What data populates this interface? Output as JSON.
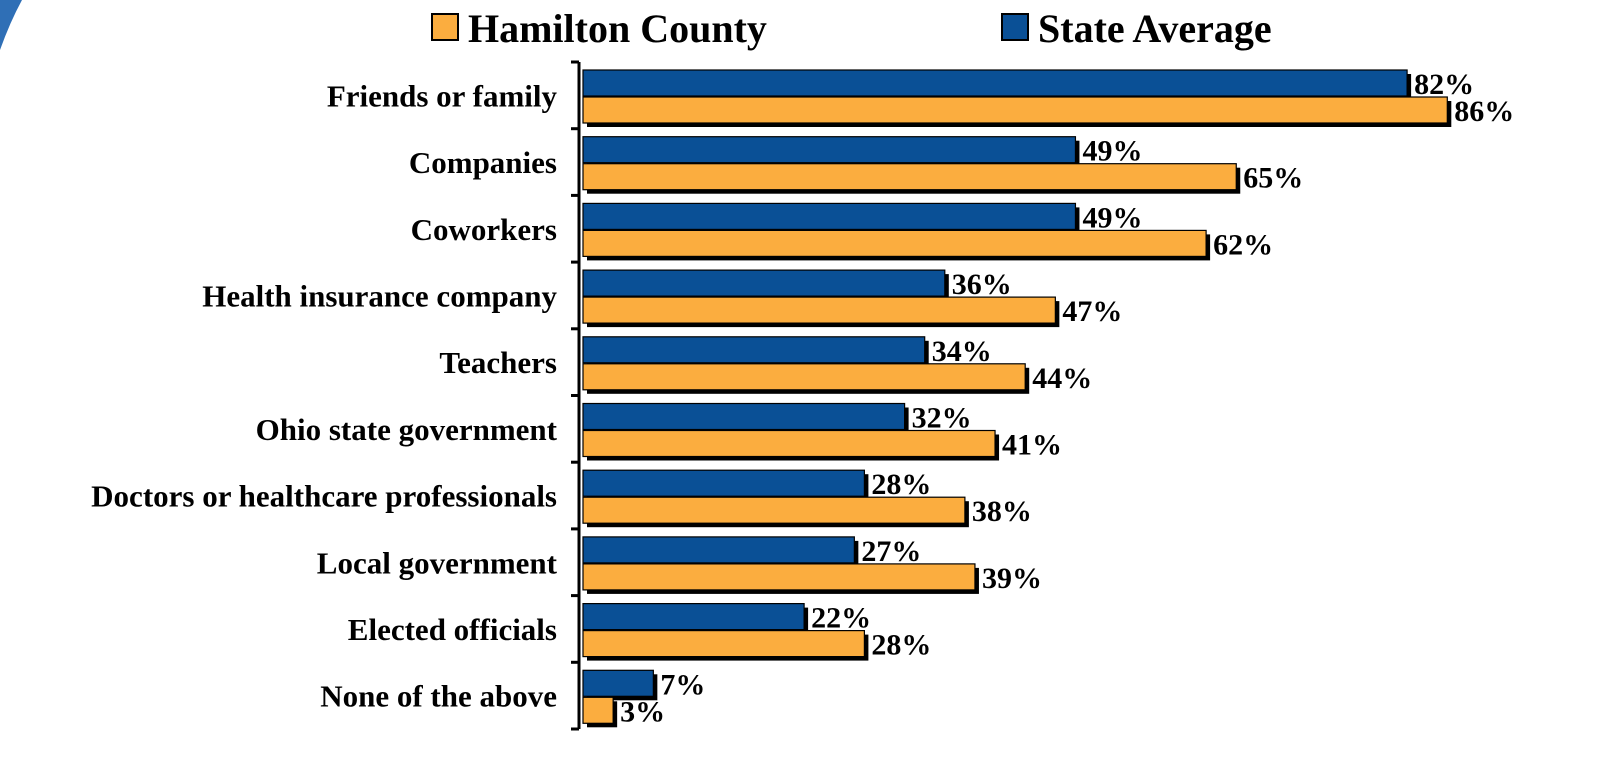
{
  "chart_data": {
    "type": "bar",
    "orientation": "horizontal",
    "categories": [
      "Friends or family",
      "Companies",
      "Coworkers",
      "Health insurance company",
      "Teachers",
      "Ohio state government",
      "Doctors or healthcare professionals",
      "Local government",
      "Elected officials",
      "None of the above"
    ],
    "series": [
      {
        "name": "State Average",
        "color": "#0a5096",
        "values": [
          82,
          49,
          49,
          36,
          34,
          32,
          28,
          27,
          22,
          7
        ],
        "labels": [
          "82%",
          "49%",
          "49%",
          "36%",
          "34%",
          "32%",
          "28%",
          "27%",
          "22%",
          "7%"
        ]
      },
      {
        "name": "Hamilton County",
        "color": "#fbad3f",
        "values": [
          86,
          65,
          62,
          47,
          44,
          41,
          38,
          39,
          28,
          3
        ],
        "labels": [
          "86%",
          "65%",
          "62%",
          "47%",
          "44%",
          "41%",
          "38%",
          "39%",
          "28%",
          "3%"
        ]
      }
    ],
    "legend_order": [
      "Hamilton County",
      "State Average"
    ],
    "legend_position": "top",
    "xlim": [
      0,
      100
    ],
    "grid": false,
    "title": "",
    "xlabel": "",
    "ylabel": ""
  }
}
